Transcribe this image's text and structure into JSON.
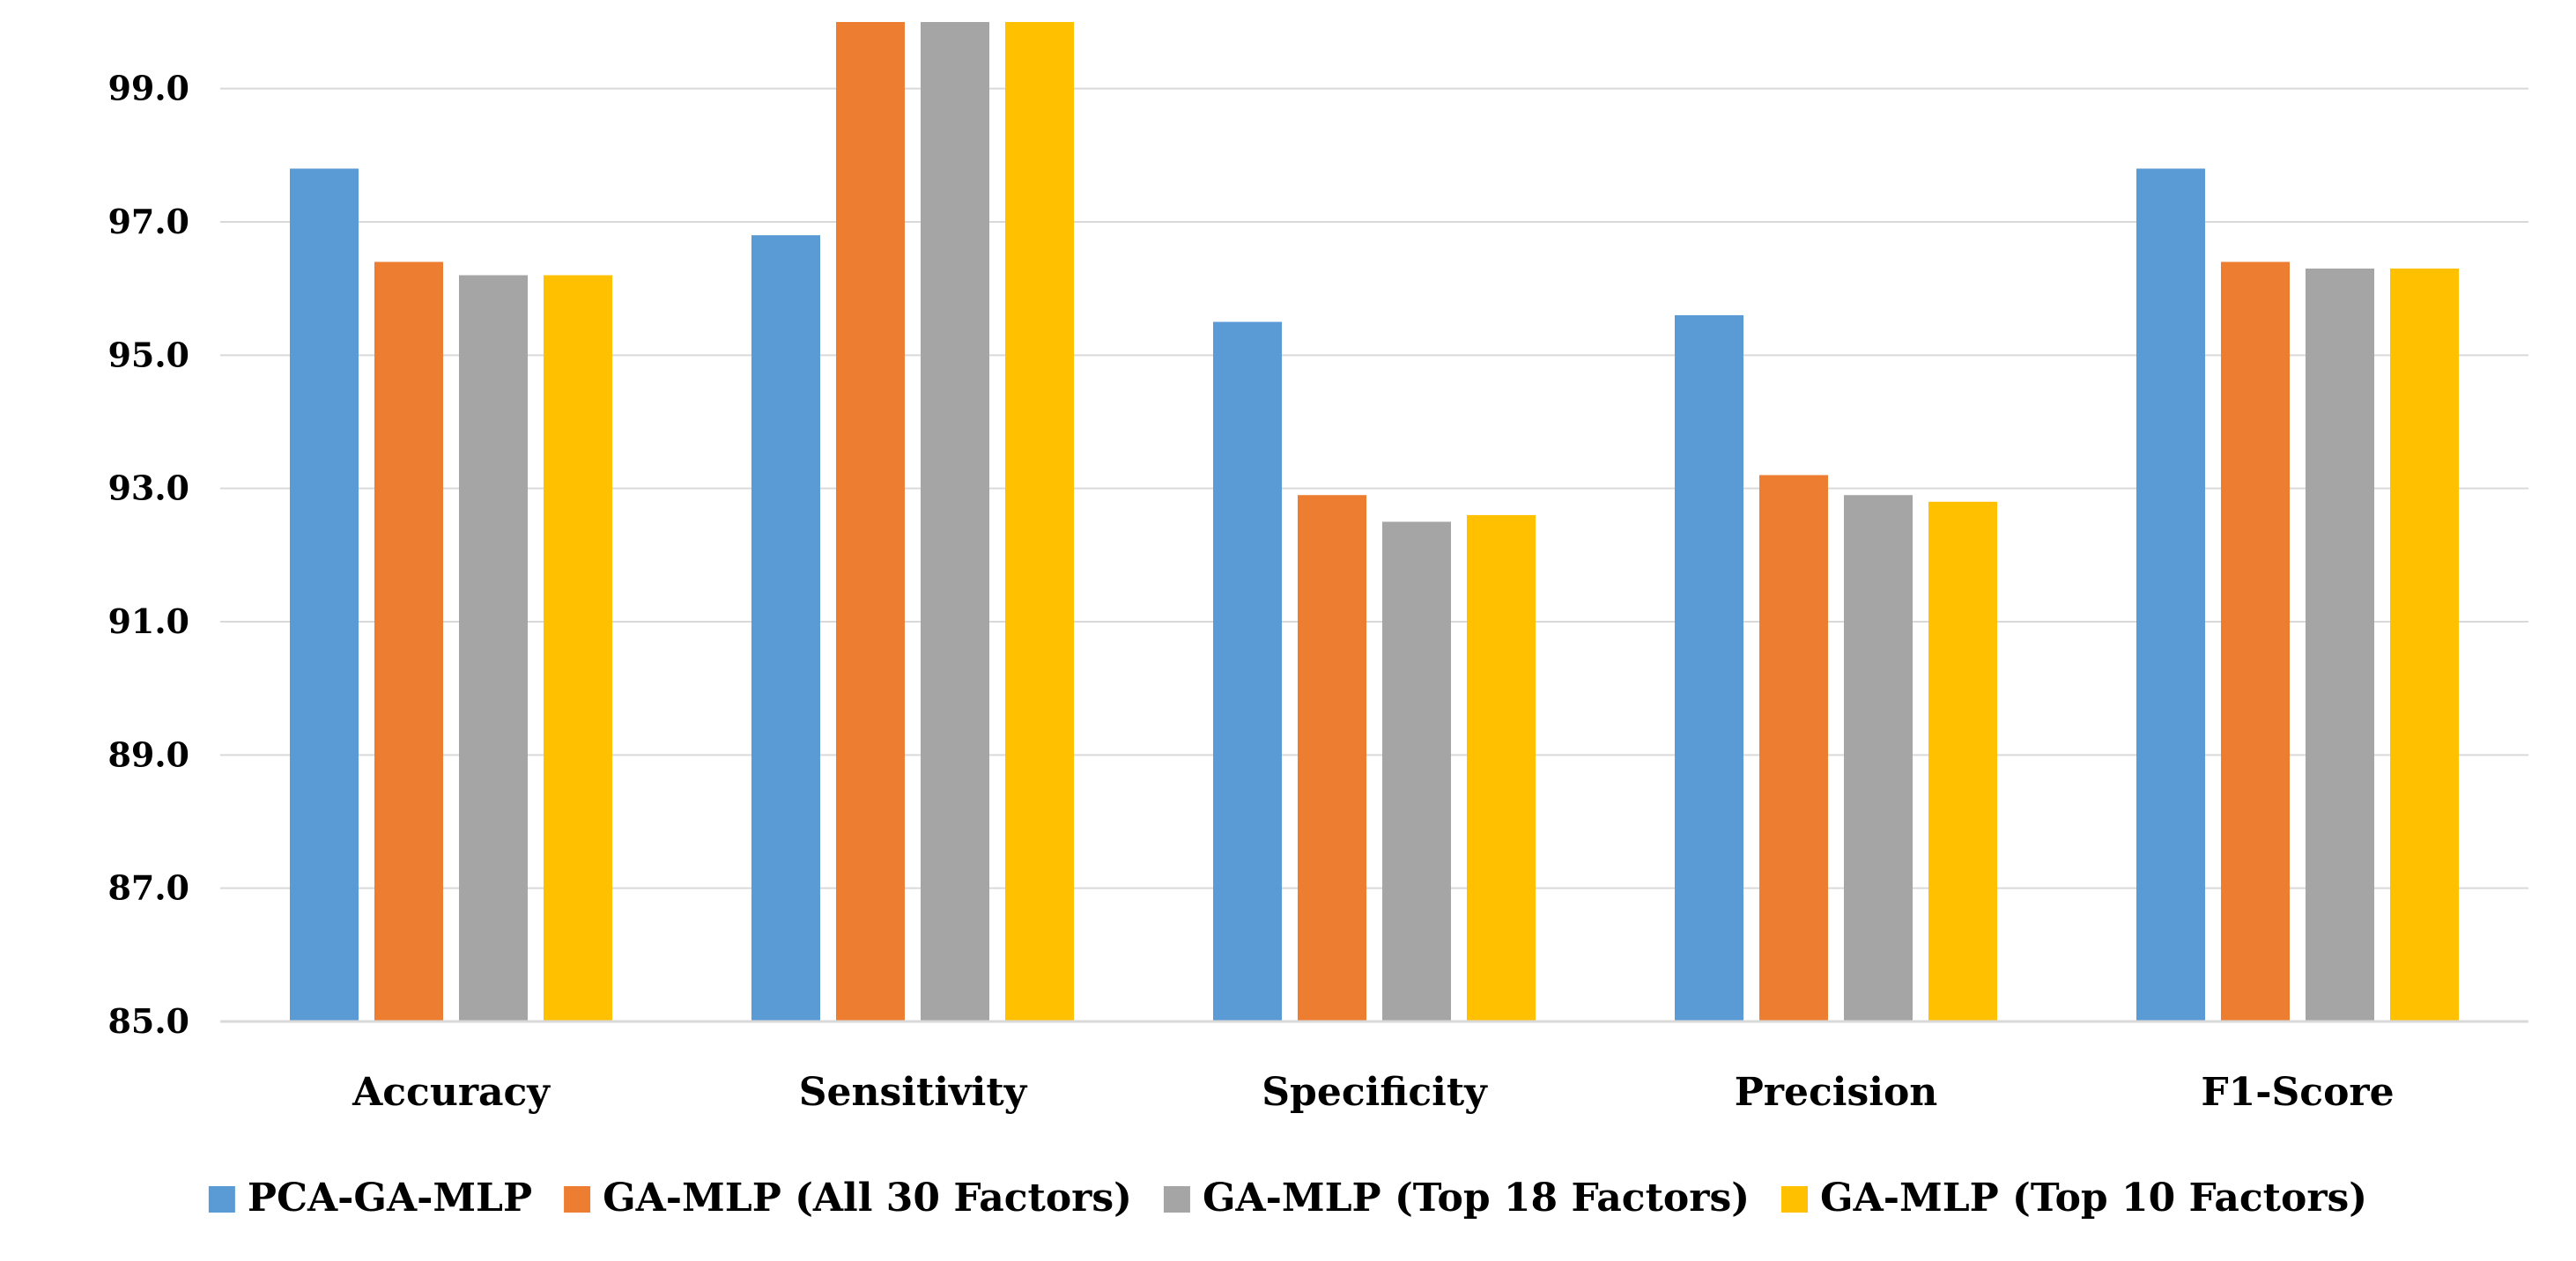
{
  "chart_data": {
    "type": "bar",
    "title": "",
    "xlabel": "",
    "ylabel": "",
    "categories": [
      "Accuracy",
      "Sensitivity",
      "Specificity",
      "Precision",
      "F1-Score"
    ],
    "series": [
      {
        "name": "PCA-GA-MLP",
        "color": "#5B9BD5",
        "values": [
          97.8,
          96.8,
          95.5,
          95.6,
          97.8
        ]
      },
      {
        "name": "GA-MLP (All 30 Factors)",
        "color": "#ED7D31",
        "values": [
          96.4,
          100.0,
          92.9,
          93.2,
          96.4
        ]
      },
      {
        "name": "GA-MLP (Top 18 Factors)",
        "color": "#A5A5A5",
        "values": [
          96.2,
          100.0,
          92.5,
          92.9,
          96.3
        ]
      },
      {
        "name": "GA-MLP (Top 10 Factors)",
        "color": "#FFC000",
        "values": [
          96.2,
          100.0,
          92.6,
          92.8,
          96.3
        ]
      }
    ],
    "ylim": [
      85,
      100
    ],
    "yticks": [
      "85.0",
      "87.0",
      "89.0",
      "91.0",
      "93.0",
      "95.0",
      "97.0",
      "99.0"
    ],
    "grid": true,
    "legend_position": "bottom"
  }
}
